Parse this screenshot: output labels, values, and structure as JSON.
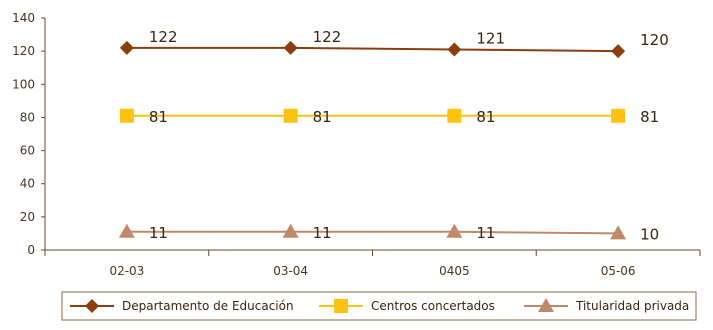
{
  "chart_data": {
    "type": "line",
    "title": "",
    "xlabel": "",
    "ylabel": "",
    "categories": [
      "02-03",
      "03-04",
      "0405",
      "05-06"
    ],
    "ylim": [
      0,
      140
    ],
    "yticks": [
      "0",
      "20",
      "40",
      "60",
      "80",
      "100",
      "120",
      "140"
    ],
    "grid": "none",
    "legend_position": "bottom",
    "series": [
      {
        "name": "Departamento de Educación",
        "values": [
          122,
          122,
          121,
          120
        ],
        "labels": [
          "122",
          "122",
          "121",
          "120"
        ],
        "color": "#8b3e0f",
        "marker": "diamond"
      },
      {
        "name": "Centros concertados",
        "values": [
          81,
          81,
          81,
          81
        ],
        "labels": [
          "81",
          "81",
          "81",
          "81"
        ],
        "color": "#fec20f",
        "marker": "square"
      },
      {
        "name": "Titularidad privada",
        "values": [
          11,
          11,
          11,
          10
        ],
        "labels": [
          "11",
          "11",
          "11",
          "10"
        ],
        "color": "#c08a6a",
        "marker": "triangle"
      }
    ]
  }
}
